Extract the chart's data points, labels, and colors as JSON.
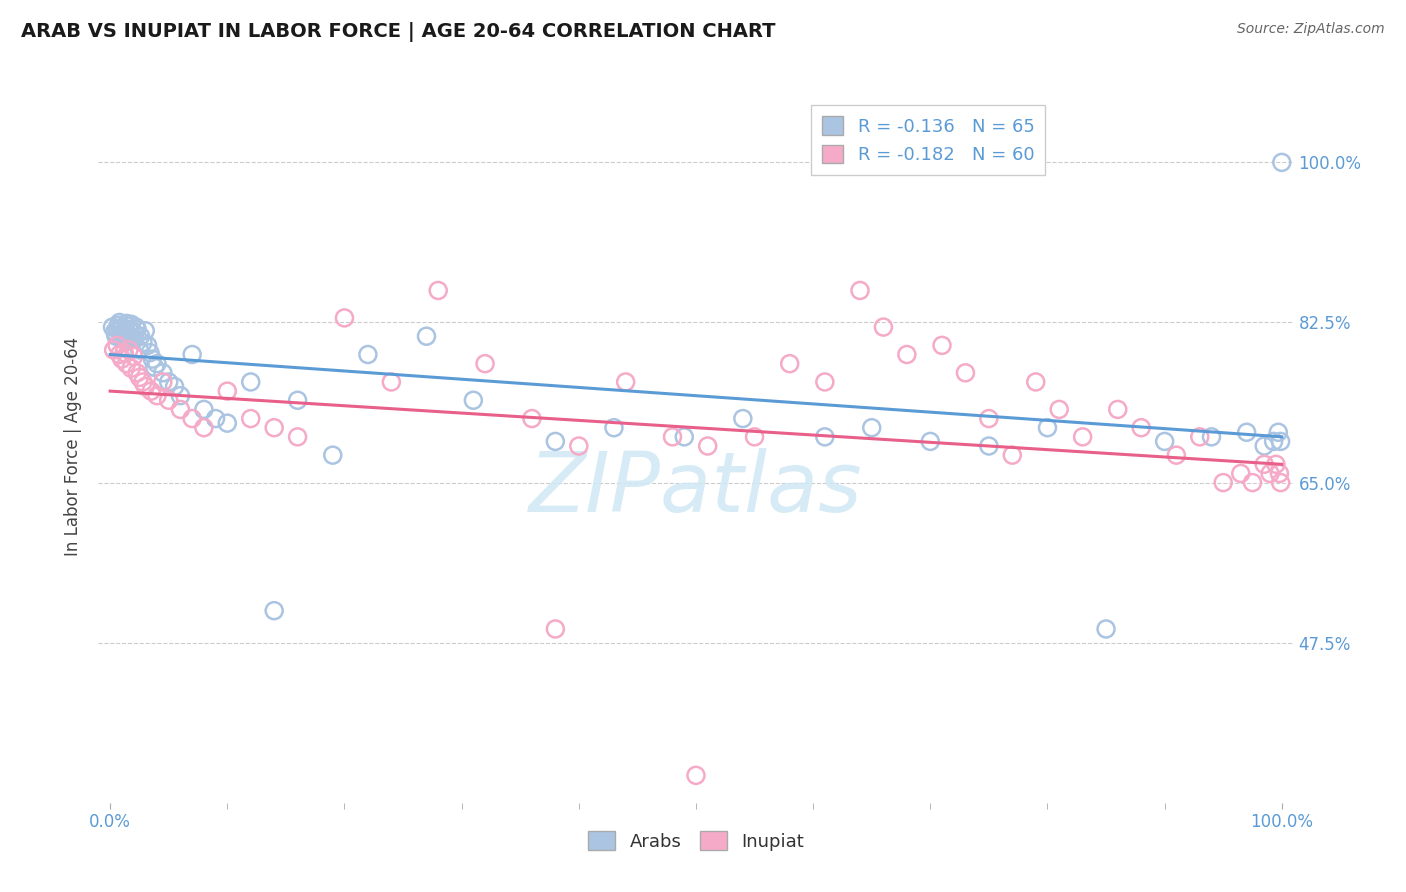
{
  "title": "ARAB VS INUPIAT IN LABOR FORCE | AGE 20-64 CORRELATION CHART",
  "source_text": "Source: ZipAtlas.com",
  "ylabel": "In Labor Force | Age 20-64",
  "xlim": [
    -0.01,
    1.01
  ],
  "ylim": [
    0.3,
    1.08
  ],
  "yticks": [
    0.475,
    0.65,
    0.825,
    1.0
  ],
  "ytick_labels": [
    "47.5%",
    "65.0%",
    "82.5%",
    "100.0%"
  ],
  "xtick_labels": [
    "0.0%",
    "100.0%"
  ],
  "legend_arab_R": -0.136,
  "legend_arab_N": 65,
  "legend_inupiat_R": -0.182,
  "legend_inupiat_N": 60,
  "arab_color": "#aac4e2",
  "inupiat_color": "#f5aac8",
  "trend_arab_color": "#5b9bd5",
  "trend_inupiat_color": "#e8608a",
  "background_color": "#ffffff",
  "grid_color": "#cccccc",
  "watermark_text": "ZIPatlas",
  "arab_x": [
    0.002,
    0.004,
    0.005,
    0.006,
    0.007,
    0.008,
    0.009,
    0.01,
    0.01,
    0.011,
    0.012,
    0.013,
    0.014,
    0.015,
    0.015,
    0.016,
    0.017,
    0.018,
    0.019,
    0.02,
    0.021,
    0.022,
    0.023,
    0.025,
    0.026,
    0.028,
    0.03,
    0.032,
    0.034,
    0.036,
    0.038,
    0.04,
    0.045,
    0.05,
    0.055,
    0.06,
    0.07,
    0.08,
    0.09,
    0.1,
    0.12,
    0.14,
    0.16,
    0.19,
    0.22,
    0.27,
    0.31,
    0.38,
    0.43,
    0.49,
    0.54,
    0.61,
    0.65,
    0.7,
    0.75,
    0.8,
    0.85,
    0.9,
    0.94,
    0.97,
    0.985,
    0.993,
    0.997,
    0.999,
    1.0
  ],
  "arab_y": [
    0.82,
    0.815,
    0.81,
    0.818,
    0.822,
    0.825,
    0.813,
    0.819,
    0.808,
    0.812,
    0.806,
    0.816,
    0.824,
    0.811,
    0.805,
    0.821,
    0.817,
    0.823,
    0.809,
    0.814,
    0.807,
    0.82,
    0.818,
    0.795,
    0.81,
    0.803,
    0.816,
    0.8,
    0.792,
    0.785,
    0.776,
    0.78,
    0.77,
    0.76,
    0.755,
    0.745,
    0.79,
    0.73,
    0.72,
    0.715,
    0.76,
    0.51,
    0.74,
    0.68,
    0.79,
    0.81,
    0.74,
    0.695,
    0.71,
    0.7,
    0.72,
    0.7,
    0.71,
    0.695,
    0.69,
    0.71,
    0.49,
    0.695,
    0.7,
    0.705,
    0.69,
    0.695,
    0.705,
    0.695,
    1.0
  ],
  "inupiat_x": [
    0.003,
    0.006,
    0.008,
    0.01,
    0.012,
    0.014,
    0.016,
    0.018,
    0.02,
    0.023,
    0.025,
    0.028,
    0.03,
    0.035,
    0.04,
    0.045,
    0.05,
    0.06,
    0.07,
    0.08,
    0.1,
    0.12,
    0.14,
    0.16,
    0.2,
    0.24,
    0.28,
    0.32,
    0.36,
    0.4,
    0.44,
    0.48,
    0.51,
    0.55,
    0.58,
    0.61,
    0.64,
    0.66,
    0.68,
    0.71,
    0.73,
    0.75,
    0.77,
    0.79,
    0.81,
    0.83,
    0.86,
    0.88,
    0.91,
    0.93,
    0.95,
    0.965,
    0.975,
    0.985,
    0.99,
    0.995,
    0.998,
    0.999,
    0.38,
    0.5
  ],
  "inupiat_y": [
    0.795,
    0.8,
    0.79,
    0.785,
    0.792,
    0.78,
    0.795,
    0.775,
    0.788,
    0.77,
    0.765,
    0.76,
    0.755,
    0.75,
    0.745,
    0.76,
    0.74,
    0.73,
    0.72,
    0.71,
    0.75,
    0.72,
    0.71,
    0.7,
    0.83,
    0.76,
    0.86,
    0.78,
    0.72,
    0.69,
    0.76,
    0.7,
    0.69,
    0.7,
    0.78,
    0.76,
    0.86,
    0.82,
    0.79,
    0.8,
    0.77,
    0.72,
    0.68,
    0.76,
    0.73,
    0.7,
    0.73,
    0.71,
    0.68,
    0.7,
    0.65,
    0.66,
    0.65,
    0.67,
    0.66,
    0.67,
    0.66,
    0.65,
    0.49,
    0.33
  ],
  "trend_arab_x0": 0.0,
  "trend_arab_y0": 0.79,
  "trend_arab_x1": 1.0,
  "trend_arab_y1": 0.7,
  "trend_inupiat_x0": 0.0,
  "trend_inupiat_y0": 0.75,
  "trend_inupiat_x1": 1.0,
  "trend_inupiat_y1": 0.67
}
